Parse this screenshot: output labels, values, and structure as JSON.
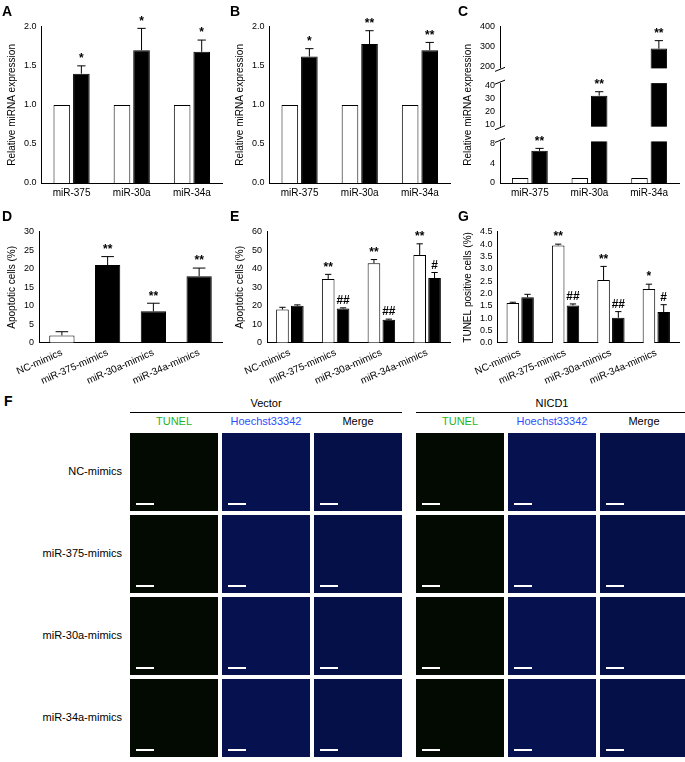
{
  "chart_data": [
    {
      "type": "bar",
      "title": "A",
      "ylabel": "Relative miRNA expression",
      "categories": [
        "miR-375",
        "miR-30a",
        "miR-34a"
      ],
      "series": [
        {
          "color": "#ffffff",
          "values": [
            1,
            1,
            1
          ]
        },
        {
          "color": "#000000",
          "values": [
            1.4,
            1.7,
            1.68
          ],
          "errors": [
            0.1,
            0.28,
            0.15
          ],
          "annotations": [
            "*",
            "*",
            "*"
          ]
        }
      ],
      "ylim": [
        0,
        2
      ],
      "yticks": [
        {
          "value": 0,
          "label": "0.0"
        },
        {
          "value": 0.5,
          "label": "0.5"
        },
        {
          "value": 1,
          "label": "1.0"
        },
        {
          "value": 1.5,
          "label": "1.5"
        },
        {
          "value": 2,
          "label": "2.0"
        }
      ],
      "grid": false
    },
    {
      "type": "bar",
      "title": "B",
      "ylabel": "Relative miRNA expression",
      "categories": [
        "miR-375",
        "miR-30a",
        "miR-34a"
      ],
      "series": [
        {
          "color": "#ffffff",
          "values": [
            1,
            1,
            1
          ]
        },
        {
          "color": "#000000",
          "values": [
            1.62,
            1.78,
            1.7
          ],
          "errors": [
            0.1,
            0.17,
            0.1
          ],
          "annotations": [
            "*",
            "**",
            "**"
          ]
        }
      ],
      "ylim": [
        0,
        2
      ],
      "yticks": [
        {
          "value": 0,
          "label": "0.0"
        },
        {
          "value": 0.5,
          "label": "0.5"
        },
        {
          "value": 1,
          "label": "1.0"
        },
        {
          "value": 1.5,
          "label": "1.5"
        },
        {
          "value": 2,
          "label": "2.0"
        }
      ],
      "grid": false
    },
    {
      "type": "bar",
      "title": "C",
      "ylabel": "Relative miRNA expression",
      "categories": [
        "miR-375",
        "miR-30a",
        "miR-34a"
      ],
      "series": [
        {
          "color": "#ffffff",
          "values": [
            1,
            1,
            1
          ]
        },
        {
          "color": "#000000",
          "values": [
            6.5,
            32,
            290
          ],
          "errors": [
            0.5,
            3,
            40
          ],
          "annotations": [
            "**",
            "**",
            "**"
          ]
        }
      ],
      "ylim": [
        0,
        400
      ],
      "yticks": [
        0,
        4,
        8,
        10,
        20,
        30,
        40,
        200,
        300,
        400
      ],
      "grid": false
    },
    {
      "type": "bar",
      "title": "D",
      "ylabel": "Apoptotic cells (%)",
      "categories": [
        "NC-mimics",
        "miR-375-mimics",
        "miR-30a-mimics",
        "miR-34a-mimics"
      ],
      "series": [
        {
          "colors": [
            "#ffffff",
            "#000000",
            "#000000",
            "#000000"
          ],
          "values": [
            2,
            21,
            8.5,
            18
          ],
          "errors": [
            1,
            2.3,
            2.2,
            2.2
          ],
          "annotations": [
            null,
            "**",
            "**",
            "**"
          ]
        }
      ],
      "ylim": [
        0,
        30
      ],
      "yticks": [
        0,
        5,
        10,
        15,
        20,
        25,
        30
      ],
      "grid": false
    },
    {
      "type": "bar",
      "title": "E",
      "ylabel": "Apoptotic cells (%)",
      "categories": [
        "NC-mimics",
        "miR-375-mimics",
        "miR-30a-mimics",
        "miR-34a-mimics"
      ],
      "series": [
        {
          "color": "#ffffff",
          "values": [
            18,
            34.5,
            43,
            47.5
          ],
          "errors": [
            1.2,
            2.5,
            2,
            6
          ],
          "annotations": [
            null,
            "**",
            "**",
            "**"
          ]
        },
        {
          "color": "#000000",
          "values": [
            20,
            18.5,
            12.5,
            35
          ],
          "errors": [
            0.5,
            0.4,
            0.3,
            3
          ],
          "annotations": [
            null,
            "##",
            "##",
            "#"
          ]
        }
      ],
      "ylim": [
        0,
        60
      ],
      "yticks": [
        0,
        10,
        20,
        30,
        40,
        50,
        60
      ],
      "grid": false
    },
    {
      "type": "bar",
      "title": "G",
      "ylabel": "TUNEL positive cells (%)",
      "categories": [
        "NC-mimics",
        "miR-375-mimics",
        "miR-30a-mimics",
        "miR-34a-mimics"
      ],
      "series": [
        {
          "color": "#ffffff",
          "values": [
            1.62,
            3.95,
            2.55,
            2.18
          ],
          "errors": [
            0.03,
            0.05,
            0.55,
            0.2
          ],
          "annotations": [
            null,
            "**",
            "**",
            "*"
          ]
        },
        {
          "color": "#000000",
          "values": [
            1.85,
            1.52,
            1.02,
            1.25
          ],
          "errors": [
            0.12,
            0.06,
            0.25,
            0.3
          ],
          "annotations": [
            null,
            "##",
            "##",
            "#"
          ]
        }
      ],
      "ylim": [
        0,
        4.5
      ],
      "yticks": [
        {
          "value": 0,
          "label": "0.0"
        },
        {
          "value": 0.5,
          "label": "0.5"
        },
        {
          "value": 1,
          "label": "1.0"
        },
        {
          "value": 1.5,
          "label": "1.5"
        },
        {
          "value": 2,
          "label": "2.0"
        },
        {
          "value": 2.5,
          "label": "2.5"
        },
        {
          "value": 3,
          "label": "3.0"
        },
        {
          "value": 3.5,
          "label": "3.5"
        },
        {
          "value": 4,
          "label": "4.0"
        },
        {
          "value": 4.5,
          "label": "4.5"
        }
      ],
      "grid": false
    }
  ],
  "figure_f": {
    "title": "F",
    "groups": [
      "Vector",
      "NICD1"
    ],
    "columns": [
      "TUNEL",
      "Hoechst33342",
      "Merge"
    ],
    "rows": [
      "NC-mimics",
      "miR-375-mimics",
      "miR-30a-mimics",
      "miR-34a-mimics"
    ]
  }
}
